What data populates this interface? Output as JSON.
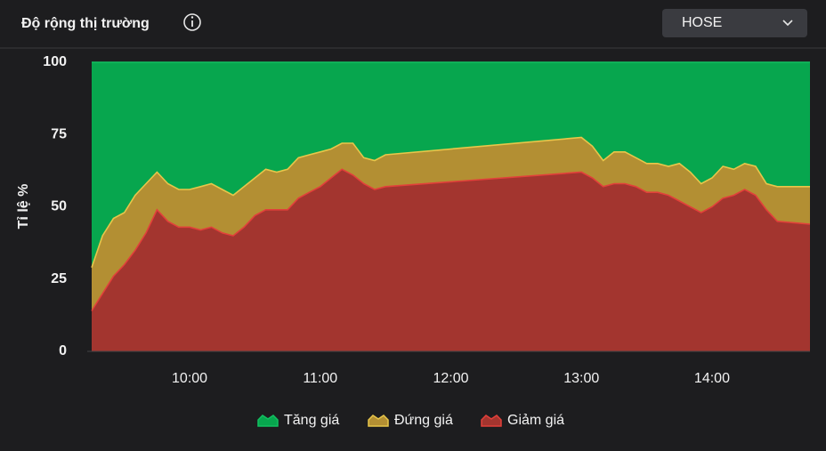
{
  "title": "Độ rộng thị trường",
  "dropdown": {
    "value": "HOSE"
  },
  "chart_data": {
    "type": "stacked_area",
    "y_label": "Tỉ lệ %",
    "x": [
      "09:15",
      "09:20",
      "09:25",
      "09:30",
      "09:35",
      "09:40",
      "09:45",
      "09:50",
      "09:55",
      "10:00",
      "10:05",
      "10:10",
      "10:15",
      "10:20",
      "10:25",
      "10:30",
      "10:35",
      "10:40",
      "10:45",
      "10:50",
      "10:55",
      "11:00",
      "11:05",
      "11:10",
      "11:15",
      "11:20",
      "11:25",
      "11:30",
      "13:00",
      "13:05",
      "13:10",
      "13:15",
      "13:20",
      "13:25",
      "13:30",
      "13:35",
      "13:40",
      "13:45",
      "13:50",
      "13:55",
      "14:00",
      "14:05",
      "14:10",
      "14:15",
      "14:20",
      "14:25",
      "14:30",
      "14:45"
    ],
    "xlim": [
      "09:15",
      "14:45"
    ],
    "xticks": [
      "10:00",
      "11:00",
      "12:00",
      "13:00",
      "14:00"
    ],
    "ylim": [
      0,
      100
    ],
    "yticks": [
      0,
      25,
      50,
      75,
      100
    ],
    "series": [
      {
        "name": "Tăng giá",
        "color": "#07a64e",
        "line_color": "#12c060",
        "values": [
          71,
          60,
          54,
          52,
          46,
          42,
          38,
          42,
          44,
          44,
          43,
          42,
          44,
          46,
          43,
          40,
          37,
          38,
          37,
          33,
          32,
          31,
          30,
          28,
          28,
          33,
          34,
          32,
          26,
          29,
          34,
          31,
          31,
          33,
          35,
          35,
          36,
          35,
          38,
          42,
          40,
          36,
          37,
          35,
          36,
          42,
          43,
          43
        ]
      },
      {
        "name": "Đứng giá",
        "color": "#b38f33",
        "line_color": "#e8c64a",
        "values": [
          15,
          20,
          20,
          18,
          19,
          17,
          13,
          13,
          13,
          13,
          15,
          15,
          15,
          14,
          14,
          13,
          14,
          13,
          14,
          14,
          13,
          12,
          10,
          9,
          11,
          9,
          10,
          11,
          12,
          11,
          9,
          11,
          11,
          10,
          10,
          10,
          10,
          13,
          12,
          10,
          10,
          11,
          9,
          9,
          10,
          9,
          12,
          13
        ]
      },
      {
        "name": "Giảm giá",
        "color": "#a3352f",
        "line_color": "#e2403a",
        "values": [
          14,
          20,
          26,
          30,
          35,
          41,
          49,
          45,
          43,
          43,
          42,
          43,
          41,
          40,
          43,
          47,
          49,
          49,
          49,
          53,
          55,
          57,
          60,
          63,
          61,
          58,
          56,
          57,
          62,
          60,
          57,
          58,
          58,
          57,
          55,
          55,
          54,
          52,
          50,
          48,
          50,
          53,
          54,
          56,
          54,
          49,
          45,
          44
        ]
      }
    ]
  }
}
